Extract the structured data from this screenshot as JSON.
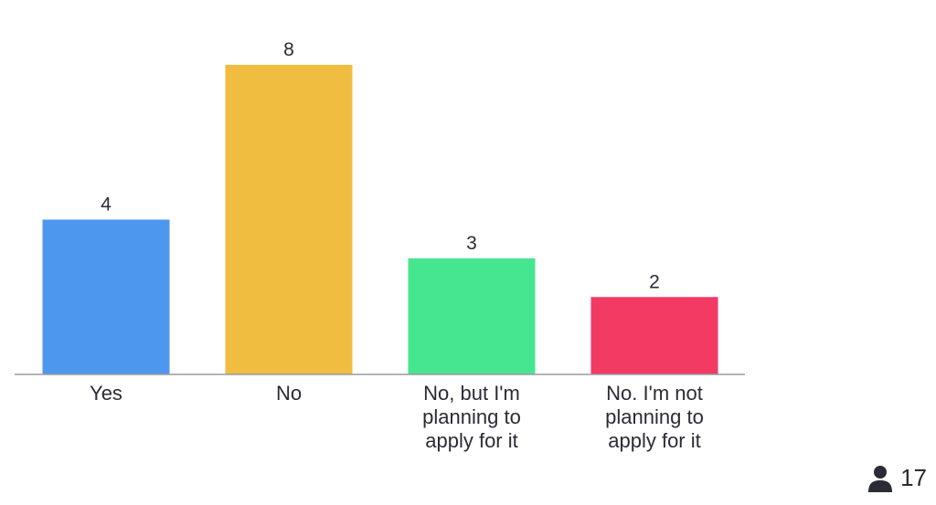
{
  "chart_data": {
    "type": "bar",
    "categories": [
      "Yes",
      "No",
      "No, but I'm planning to apply for it",
      "No. I'm not planning to apply for it"
    ],
    "values": [
      4,
      8,
      3,
      2
    ],
    "colors": [
      "#4d97ee",
      "#f0bd41",
      "#46e690",
      "#f23a62"
    ]
  },
  "participants": {
    "count": 17
  }
}
